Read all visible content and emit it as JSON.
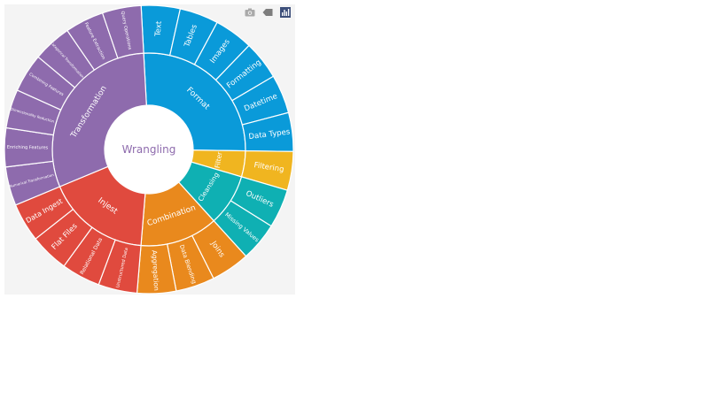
{
  "chart_data": {
    "type": "sunburst",
    "root": "Wrangling",
    "root_color": "#8e6bad",
    "children": [
      {
        "name": "Format",
        "color": "#0a9ad9",
        "children": [
          "Text",
          "Tables",
          "Images",
          "Formatting",
          "Datetime",
          "Data Types"
        ]
      },
      {
        "name": "Filter",
        "color": "#f0b520",
        "children": [
          "Filtering"
        ]
      },
      {
        "name": "Cleansing",
        "color": "#0fb0b3",
        "children": [
          "Outliers",
          "Missing Values"
        ]
      },
      {
        "name": "Combination",
        "color": "#e9891d",
        "children": [
          "Joins",
          "Data Blending",
          "Aggregation"
        ]
      },
      {
        "name": "Injest",
        "color": "#e04a3e",
        "children": [
          "Unstructured Data",
          "Relational Data",
          "Flat Files",
          "Data Ingest"
        ]
      },
      {
        "name": "Transformation",
        "color": "#8e6bad",
        "children": [
          "Numerical Transformation",
          "Enriching Features",
          "Dimensionality Reduction",
          "Combining Features",
          "Categorical Transformation",
          "Feature Extraction",
          "Query Operations"
        ]
      }
    ]
  },
  "toolbar": {
    "camera_icon": "camera-icon",
    "pan_icon": "pan-icon",
    "logo_icon": "plotly-logo-icon"
  }
}
